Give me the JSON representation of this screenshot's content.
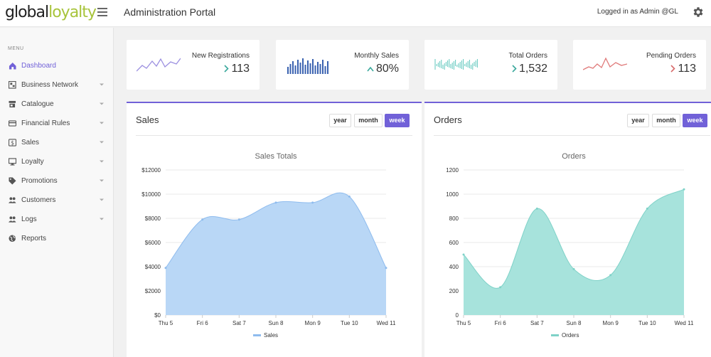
{
  "header": {
    "logo_global": "global",
    "logo_loyalty": "loyalty",
    "title": "Administration Portal",
    "logged_in": "Logged in as Admin @GL"
  },
  "sidebar": {
    "menu_label": "MENU",
    "items": [
      {
        "label": "Dashboard",
        "icon": "home-icon",
        "active": true,
        "chevron": false
      },
      {
        "label": "Business Network",
        "icon": "network-icon",
        "active": false,
        "chevron": true
      },
      {
        "label": "Catalogue",
        "icon": "store-icon",
        "active": false,
        "chevron": true
      },
      {
        "label": "Financial Rules",
        "icon": "card-icon",
        "active": false,
        "chevron": true
      },
      {
        "label": "Sales",
        "icon": "dollar-icon",
        "active": false,
        "chevron": true
      },
      {
        "label": "Loyalty",
        "icon": "monitor-icon",
        "active": false,
        "chevron": true
      },
      {
        "label": "Promotions",
        "icon": "tag-icon",
        "active": false,
        "chevron": true
      },
      {
        "label": "Customers",
        "icon": "people-icon",
        "active": false,
        "chevron": true
      },
      {
        "label": "Logs",
        "icon": "people-icon",
        "active": false,
        "chevron": true
      },
      {
        "label": "Reports",
        "icon": "globe-icon",
        "active": false,
        "chevron": false
      }
    ]
  },
  "stats": [
    {
      "title": "New Registrations",
      "value": "113",
      "trend": "right",
      "color": "#9b8fe0"
    },
    {
      "title": "Monthly Sales",
      "value": "80%",
      "trend": "up",
      "color": "#3a62b0"
    },
    {
      "title": "Total Orders",
      "value": "1,532",
      "trend": "right",
      "color": "#5fc7bd"
    },
    {
      "title": "Pending Orders",
      "value": "113",
      "trend": "right",
      "color": "#e07a7a"
    }
  ],
  "tabs": {
    "year": "year",
    "month": "month",
    "week": "week"
  },
  "panels": {
    "sales_title": "Sales",
    "orders_title": "Orders"
  },
  "colors": {
    "accent": "#7161d8",
    "sales_fill": "#b9d7f6",
    "sales_line": "#8fbcee",
    "orders_fill": "#a7e3dc",
    "orders_line": "#7fd2c8"
  },
  "chart_data": [
    {
      "type": "area",
      "title": "Sales Totals",
      "categories": [
        "Thu 5",
        "Fri 6",
        "Sat 7",
        "Sun 8",
        "Mon 9",
        "Tue 10",
        "Wed 11"
      ],
      "series": [
        {
          "name": "Sales",
          "values": [
            3900,
            7900,
            7900,
            9300,
            9300,
            9800,
            3900
          ]
        }
      ],
      "y_ticks": [
        "$0",
        "$2000",
        "$4000",
        "$6000",
        "$8000",
        "$10000",
        "$12000"
      ],
      "ylim": [
        0,
        12000
      ],
      "legend": "bottom"
    },
    {
      "type": "area",
      "title": "Orders",
      "categories": [
        "Thu 5",
        "Fri 6",
        "Sat 7",
        "Sun 8",
        "Mon 9",
        "Tue 10",
        "Wed 11"
      ],
      "series": [
        {
          "name": "Orders",
          "values": [
            500,
            230,
            880,
            380,
            330,
            880,
            1040
          ]
        }
      ],
      "y_ticks": [
        "0",
        "200",
        "400",
        "600",
        "800",
        "1000",
        "1200"
      ],
      "ylim": [
        0,
        1200
      ],
      "legend": "bottom"
    }
  ]
}
